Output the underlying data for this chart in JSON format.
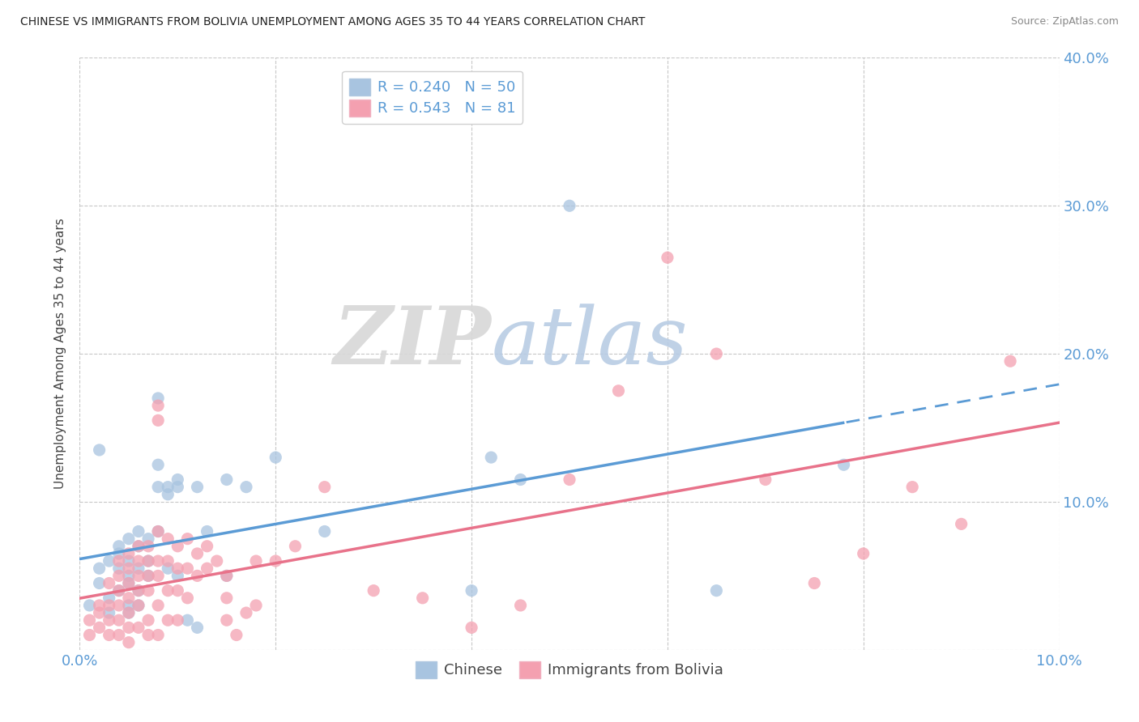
{
  "title": "CHINESE VS IMMIGRANTS FROM BOLIVIA UNEMPLOYMENT AMONG AGES 35 TO 44 YEARS CORRELATION CHART",
  "source": "Source: ZipAtlas.com",
  "ylabel": "Unemployment Among Ages 35 to 44 years",
  "xlim": [
    0,
    0.1
  ],
  "ylim": [
    0,
    0.4
  ],
  "xtick_vals": [
    0.0,
    0.02,
    0.04,
    0.06,
    0.08,
    0.1
  ],
  "xtick_labels": [
    "0.0%",
    "",
    "",
    "",
    "",
    "10.0%"
  ],
  "ytick_vals": [
    0.0,
    0.1,
    0.2,
    0.3,
    0.4
  ],
  "ytick_labels": [
    "",
    "10.0%",
    "20.0%",
    "30.0%",
    "40.0%"
  ],
  "chinese_color": "#a8c4e0",
  "bolivia_color": "#f4a0b0",
  "line_chinese_color": "#5b9bd5",
  "line_bolivia_color": "#e8728a",
  "chinese_R": 0.24,
  "chinese_N": 50,
  "bolivia_R": 0.543,
  "bolivia_N": 81,
  "legend_label_chinese": "Chinese",
  "legend_label_bolivia": "Immigrants from Bolivia",
  "watermark_zip": "ZIP",
  "watermark_atlas": "atlas",
  "watermark_zip_color": "#d8d8d8",
  "watermark_atlas_color": "#b8cce4",
  "chinese_points": [
    [
      0.001,
      0.03
    ],
    [
      0.002,
      0.045
    ],
    [
      0.002,
      0.055
    ],
    [
      0.003,
      0.06
    ],
    [
      0.003,
      0.035
    ],
    [
      0.003,
      0.025
    ],
    [
      0.004,
      0.07
    ],
    [
      0.004,
      0.055
    ],
    [
      0.004,
      0.065
    ],
    [
      0.004,
      0.04
    ],
    [
      0.005,
      0.075
    ],
    [
      0.005,
      0.06
    ],
    [
      0.005,
      0.05
    ],
    [
      0.005,
      0.045
    ],
    [
      0.005,
      0.03
    ],
    [
      0.005,
      0.025
    ],
    [
      0.006,
      0.08
    ],
    [
      0.006,
      0.07
    ],
    [
      0.006,
      0.055
    ],
    [
      0.006,
      0.04
    ],
    [
      0.006,
      0.03
    ],
    [
      0.007,
      0.075
    ],
    [
      0.007,
      0.06
    ],
    [
      0.007,
      0.05
    ],
    [
      0.008,
      0.17
    ],
    [
      0.008,
      0.125
    ],
    [
      0.008,
      0.11
    ],
    [
      0.008,
      0.08
    ],
    [
      0.009,
      0.11
    ],
    [
      0.009,
      0.105
    ],
    [
      0.009,
      0.055
    ],
    [
      0.01,
      0.115
    ],
    [
      0.01,
      0.11
    ],
    [
      0.01,
      0.05
    ],
    [
      0.011,
      0.02
    ],
    [
      0.012,
      0.015
    ],
    [
      0.012,
      0.11
    ],
    [
      0.013,
      0.08
    ],
    [
      0.015,
      0.115
    ],
    [
      0.015,
      0.05
    ],
    [
      0.017,
      0.11
    ],
    [
      0.02,
      0.13
    ],
    [
      0.025,
      0.08
    ],
    [
      0.04,
      0.04
    ],
    [
      0.042,
      0.13
    ],
    [
      0.045,
      0.115
    ],
    [
      0.05,
      0.3
    ],
    [
      0.065,
      0.04
    ],
    [
      0.078,
      0.125
    ],
    [
      0.002,
      0.135
    ]
  ],
  "bolivia_points": [
    [
      0.001,
      0.01
    ],
    [
      0.001,
      0.02
    ],
    [
      0.002,
      0.03
    ],
    [
      0.002,
      0.025
    ],
    [
      0.002,
      0.015
    ],
    [
      0.003,
      0.045
    ],
    [
      0.003,
      0.03
    ],
    [
      0.003,
      0.02
    ],
    [
      0.003,
      0.01
    ],
    [
      0.004,
      0.06
    ],
    [
      0.004,
      0.05
    ],
    [
      0.004,
      0.04
    ],
    [
      0.004,
      0.03
    ],
    [
      0.004,
      0.02
    ],
    [
      0.004,
      0.01
    ],
    [
      0.005,
      0.065
    ],
    [
      0.005,
      0.055
    ],
    [
      0.005,
      0.045
    ],
    [
      0.005,
      0.035
    ],
    [
      0.005,
      0.025
    ],
    [
      0.005,
      0.015
    ],
    [
      0.005,
      0.005
    ],
    [
      0.006,
      0.07
    ],
    [
      0.006,
      0.06
    ],
    [
      0.006,
      0.05
    ],
    [
      0.006,
      0.04
    ],
    [
      0.006,
      0.03
    ],
    [
      0.006,
      0.015
    ],
    [
      0.007,
      0.07
    ],
    [
      0.007,
      0.06
    ],
    [
      0.007,
      0.05
    ],
    [
      0.007,
      0.04
    ],
    [
      0.007,
      0.02
    ],
    [
      0.007,
      0.01
    ],
    [
      0.008,
      0.165
    ],
    [
      0.008,
      0.155
    ],
    [
      0.008,
      0.08
    ],
    [
      0.008,
      0.06
    ],
    [
      0.008,
      0.05
    ],
    [
      0.008,
      0.03
    ],
    [
      0.008,
      0.01
    ],
    [
      0.009,
      0.075
    ],
    [
      0.009,
      0.06
    ],
    [
      0.009,
      0.04
    ],
    [
      0.009,
      0.02
    ],
    [
      0.01,
      0.07
    ],
    [
      0.01,
      0.055
    ],
    [
      0.01,
      0.04
    ],
    [
      0.01,
      0.02
    ],
    [
      0.011,
      0.075
    ],
    [
      0.011,
      0.055
    ],
    [
      0.011,
      0.035
    ],
    [
      0.012,
      0.065
    ],
    [
      0.012,
      0.05
    ],
    [
      0.013,
      0.07
    ],
    [
      0.013,
      0.055
    ],
    [
      0.014,
      0.06
    ],
    [
      0.015,
      0.05
    ],
    [
      0.015,
      0.035
    ],
    [
      0.015,
      0.02
    ],
    [
      0.016,
      0.01
    ],
    [
      0.017,
      0.025
    ],
    [
      0.018,
      0.06
    ],
    [
      0.018,
      0.03
    ],
    [
      0.02,
      0.06
    ],
    [
      0.022,
      0.07
    ],
    [
      0.025,
      0.11
    ],
    [
      0.03,
      0.04
    ],
    [
      0.035,
      0.035
    ],
    [
      0.04,
      0.015
    ],
    [
      0.045,
      0.03
    ],
    [
      0.05,
      0.115
    ],
    [
      0.055,
      0.175
    ],
    [
      0.06,
      0.265
    ],
    [
      0.065,
      0.2
    ],
    [
      0.07,
      0.115
    ],
    [
      0.075,
      0.045
    ],
    [
      0.08,
      0.065
    ],
    [
      0.085,
      0.11
    ],
    [
      0.09,
      0.085
    ],
    [
      0.095,
      0.195
    ]
  ]
}
